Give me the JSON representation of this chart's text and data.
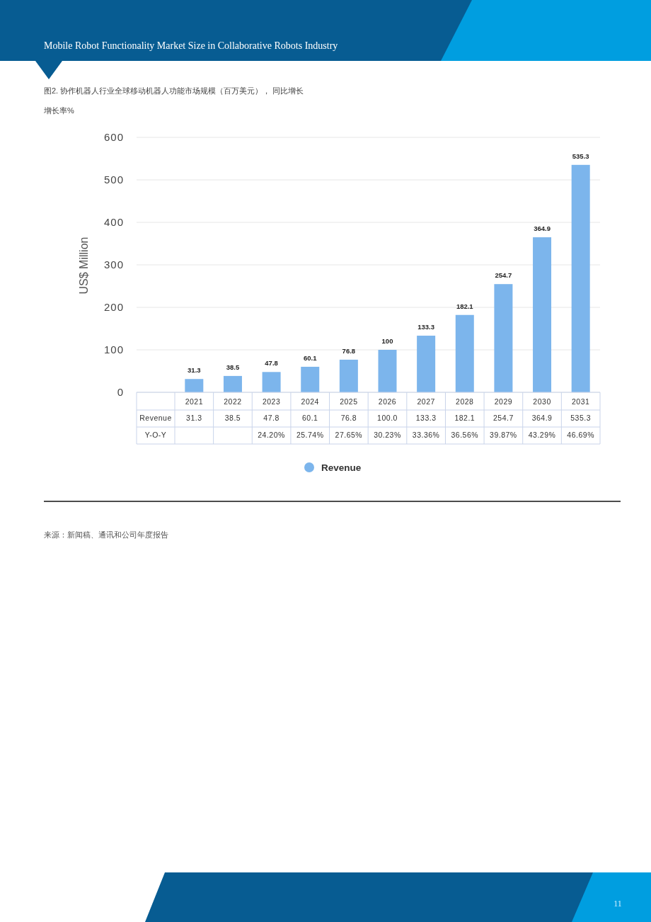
{
  "chart_data": {
    "type": "bar",
    "title": "Mobile Robot Functionality Market Size in Collaborative Robots Industry",
    "subtitle": "图2. 协作机器人行业全球移动机器人功能市场规模（百万美元）， 同比增长",
    "ylabel": "US$ Million",
    "categories": [
      "2021",
      "2022",
      "2023",
      "2024",
      "2025",
      "2026",
      "2027",
      "2028",
      "2029",
      "2030",
      "2031"
    ],
    "series": [
      {
        "name": "Revenue",
        "color": "#7cb5ec",
        "values": [
          31.3,
          38.5,
          47.8,
          60.1,
          76.8,
          100.0,
          133.3,
          182.1,
          254.7,
          364.9,
          535.3
        ],
        "value_labels": [
          "31.3",
          "38.5",
          "47.8",
          "60.1",
          "76.8",
          "100",
          "133.3",
          "182.1",
          "254.7",
          "364.9",
          "535.3"
        ]
      }
    ],
    "ylim": [
      0,
      600
    ],
    "yticks": [
      0,
      100,
      200,
      300,
      400,
      500,
      600
    ],
    "grid": "y",
    "legend": "bottom",
    "annotations": [
      "增长率%",
      "Y-O-Y",
      "来源：新闻稿、通讯和公司年度报告",
      "11",
      "31.3",
      "38.5",
      "47.8",
      "60.1",
      "76.8",
      "100.0",
      "133.3",
      "182.1",
      "254.7",
      "364.9",
      "535.3",
      "24.20%",
      "25.74%",
      "27.65%",
      "30.23%",
      "33.36%",
      "36.56%",
      "39.87%",
      "43.29%",
      "46.69%"
    ]
  }
}
